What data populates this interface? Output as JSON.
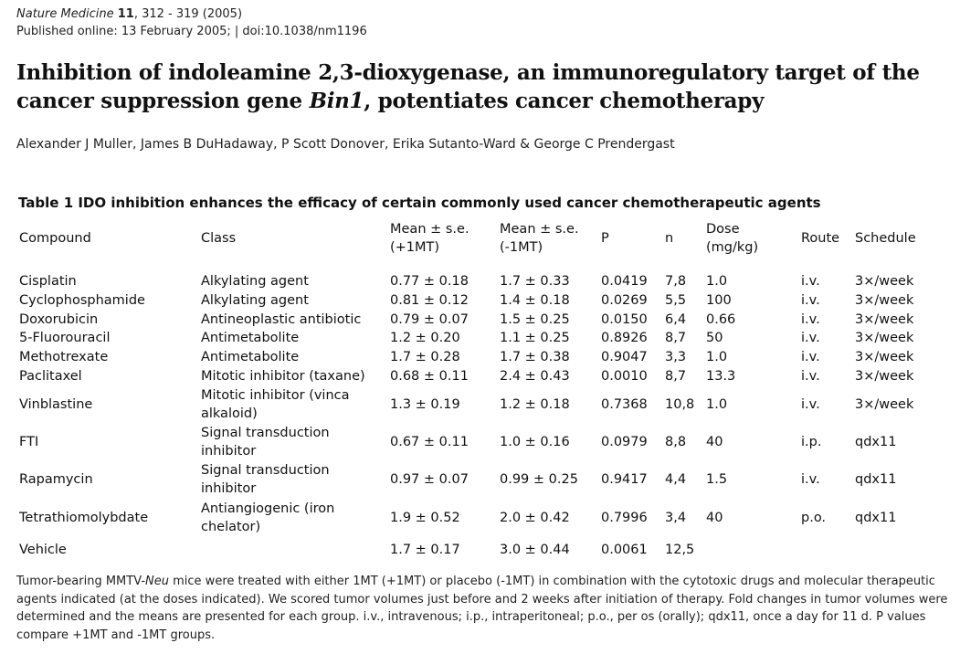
{
  "header": {
    "journal_name": "Nature Medicine",
    "volume": "11",
    "pages": ", 312 - 319 (2005)",
    "published_line": "Published online: 13 February 2005; | doi:10.1038/nm1196"
  },
  "article": {
    "title_part1": "Inhibition of indoleamine 2,3-dioxygenase, an immunoregulatory target of the cancer suppression gene ",
    "title_gene": "Bin1",
    "title_part2": ", potentiates cancer chemotherapy",
    "authors": "Alexander J Muller, James B DuHadaway, P Scott Donover, Erika Sutanto-Ward & George C Prendergast"
  },
  "table": {
    "caption": "Table 1 IDO inhibition enhances the efficacy of certain commonly used cancer chemotherapeutic agents",
    "columns": {
      "compound": "Compound",
      "class": "Class",
      "mean_plus_line1": "Mean ± s.e.",
      "mean_plus_line2": "(+1MT)",
      "mean_minus_line1": "Mean ± s.e.",
      "mean_minus_line2": "(-1MT)",
      "p": "P",
      "n": "n",
      "dose_line1": "Dose",
      "dose_line2": "(mg/kg)",
      "route": "Route",
      "schedule": "Schedule"
    },
    "rows": [
      {
        "compound": "Cisplatin",
        "class": "Alkylating agent",
        "mean_plus": "0.77 ± 0.18",
        "mean_minus": "1.7 ± 0.33",
        "p": "0.0419",
        "n": "7,8",
        "dose": "1.0",
        "route": "i.v.",
        "schedule": "3×/week"
      },
      {
        "compound": "Cyclophosphamide",
        "class": "Alkylating agent",
        "mean_plus": "0.81 ± 0.12",
        "mean_minus": "1.4 ± 0.18",
        "p": "0.0269",
        "n": "5,5",
        "dose": "100",
        "route": "i.v.",
        "schedule": "3×/week"
      },
      {
        "compound": "Doxorubicin",
        "class": "Antineoplastic antibiotic",
        "mean_plus": "0.79 ± 0.07",
        "mean_minus": "1.5 ± 0.25",
        "p": "0.0150",
        "n": "6,4",
        "dose": "0.66",
        "route": "i.v.",
        "schedule": "3×/week"
      },
      {
        "compound": "5-Fluorouracil",
        "class": "Antimetabolite",
        "mean_plus": "1.2 ± 0.20",
        "mean_minus": "1.1 ± 0.25",
        "p": "0.8926",
        "n": "8,7",
        "dose": "50",
        "route": "i.v.",
        "schedule": "3×/week"
      },
      {
        "compound": "Methotrexate",
        "class": "Antimetabolite",
        "mean_plus": "1.7 ± 0.28",
        "mean_minus": "1.7 ± 0.38",
        "p": "0.9047",
        "n": "3,3",
        "dose": "1.0",
        "route": "i.v.",
        "schedule": "3×/week"
      },
      {
        "compound": "Paclitaxel",
        "class": "Mitotic inhibitor (taxane)",
        "mean_plus": "0.68 ± 0.11",
        "mean_minus": "2.4 ± 0.43",
        "p": "0.0010",
        "n": "8,7",
        "dose": "13.3",
        "route": "i.v.",
        "schedule": "3×/week"
      },
      {
        "compound": "Vinblastine",
        "class": "Mitotic inhibitor (vinca alkaloid)",
        "mean_plus": "1.3 ± 0.19",
        "mean_minus": "1.2 ± 0.18",
        "p": "0.7368",
        "n": "10,8",
        "dose": "1.0",
        "route": "i.v.",
        "schedule": "3×/week"
      },
      {
        "compound": "FTI",
        "class": "Signal transduction inhibitor",
        "mean_plus": "0.67 ± 0.11",
        "mean_minus": "1.0 ± 0.16",
        "p": "0.0979",
        "n": "8,8",
        "dose": "40",
        "route": "i.p.",
        "schedule": "qdx11"
      },
      {
        "compound": "Rapamycin",
        "class": "Signal transduction inhibitor",
        "mean_plus": "0.97 ± 0.07",
        "mean_minus": "0.99 ± 0.25",
        "p": "0.9417",
        "n": "4,4",
        "dose": "1.5",
        "route": "i.v.",
        "schedule": "qdx11"
      },
      {
        "compound": "Tetrathiomolybdate",
        "class": "Antiangiogenic (iron chelator)",
        "mean_plus": "1.9 ± 0.52",
        "mean_minus": "2.0 ± 0.42",
        "p": "0.7996",
        "n": "3,4",
        "dose": "40",
        "route": "p.o.",
        "schedule": "qdx11"
      },
      {
        "compound": "Vehicle",
        "class": "",
        "mean_plus": "1.7 ± 0.17",
        "mean_minus": "3.0 ± 0.44",
        "p": "0.0061",
        "n": "12,5",
        "dose": "",
        "route": "",
        "schedule": ""
      }
    ],
    "footnote_part1": "Tumor-bearing MMTV-",
    "footnote_mouse": "Neu",
    "footnote_part2": " mice were treated with either 1MT (+1MT) or placebo (-1MT) in combination with the cytotoxic drugs and molecular therapeutic agents indicated (at the doses indicated). We scored tumor volumes just before and 2 weeks after initiation of therapy. Fold changes in tumor volumes were determined and the means are presented for each group. i.v., intravenous; i.p., intraperitoneal; p.o., per os (orally); qdx11, once a day for 11 d. P values compare +1MT and -1MT groups."
  }
}
